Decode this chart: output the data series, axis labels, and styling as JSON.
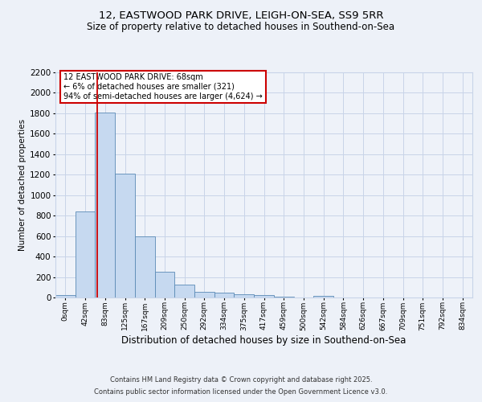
{
  "title1": "12, EASTWOOD PARK DRIVE, LEIGH-ON-SEA, SS9 5RR",
  "title2": "Size of property relative to detached houses in Southend-on-Sea",
  "xlabel": "Distribution of detached houses by size in Southend-on-Sea",
  "ylabel": "Number of detached properties",
  "bin_labels": [
    "0sqm",
    "42sqm",
    "83sqm",
    "125sqm",
    "167sqm",
    "209sqm",
    "250sqm",
    "292sqm",
    "334sqm",
    "375sqm",
    "417sqm",
    "459sqm",
    "500sqm",
    "542sqm",
    "584sqm",
    "626sqm",
    "667sqm",
    "709sqm",
    "751sqm",
    "792sqm",
    "834sqm"
  ],
  "bar_heights": [
    25,
    840,
    1810,
    1210,
    600,
    255,
    125,
    55,
    50,
    35,
    22,
    10,
    0,
    15,
    0,
    0,
    0,
    0,
    0,
    0,
    0
  ],
  "bar_color": "#c6d9f0",
  "bar_edge_color": "#5a8ab5",
  "red_line_x": 1.62,
  "ylim": [
    0,
    2200
  ],
  "yticks": [
    0,
    200,
    400,
    600,
    800,
    1000,
    1200,
    1400,
    1600,
    1800,
    2000,
    2200
  ],
  "annotation_text": "12 EASTWOOD PARK DRIVE: 68sqm\n← 6% of detached houses are smaller (321)\n94% of semi-detached houses are larger (4,624) →",
  "footer1": "Contains HM Land Registry data © Crown copyright and database right 2025.",
  "footer2": "Contains public sector information licensed under the Open Government Licence v3.0.",
  "bg_color": "#edf1f8",
  "plot_bg_color": "#eef2f9",
  "grid_color": "#c8d4e8",
  "annotation_box_color": "#ffffff",
  "annotation_box_edge": "#cc0000",
  "red_line_color": "#cc0000",
  "title1_fontsize": 9.5,
  "title2_fontsize": 8.5,
  "ylabel_fontsize": 7.5,
  "xlabel_fontsize": 8.5,
  "ytick_fontsize": 7.5,
  "xtick_fontsize": 6.5,
  "annot_fontsize": 7.0,
  "footer_fontsize": 6.0
}
